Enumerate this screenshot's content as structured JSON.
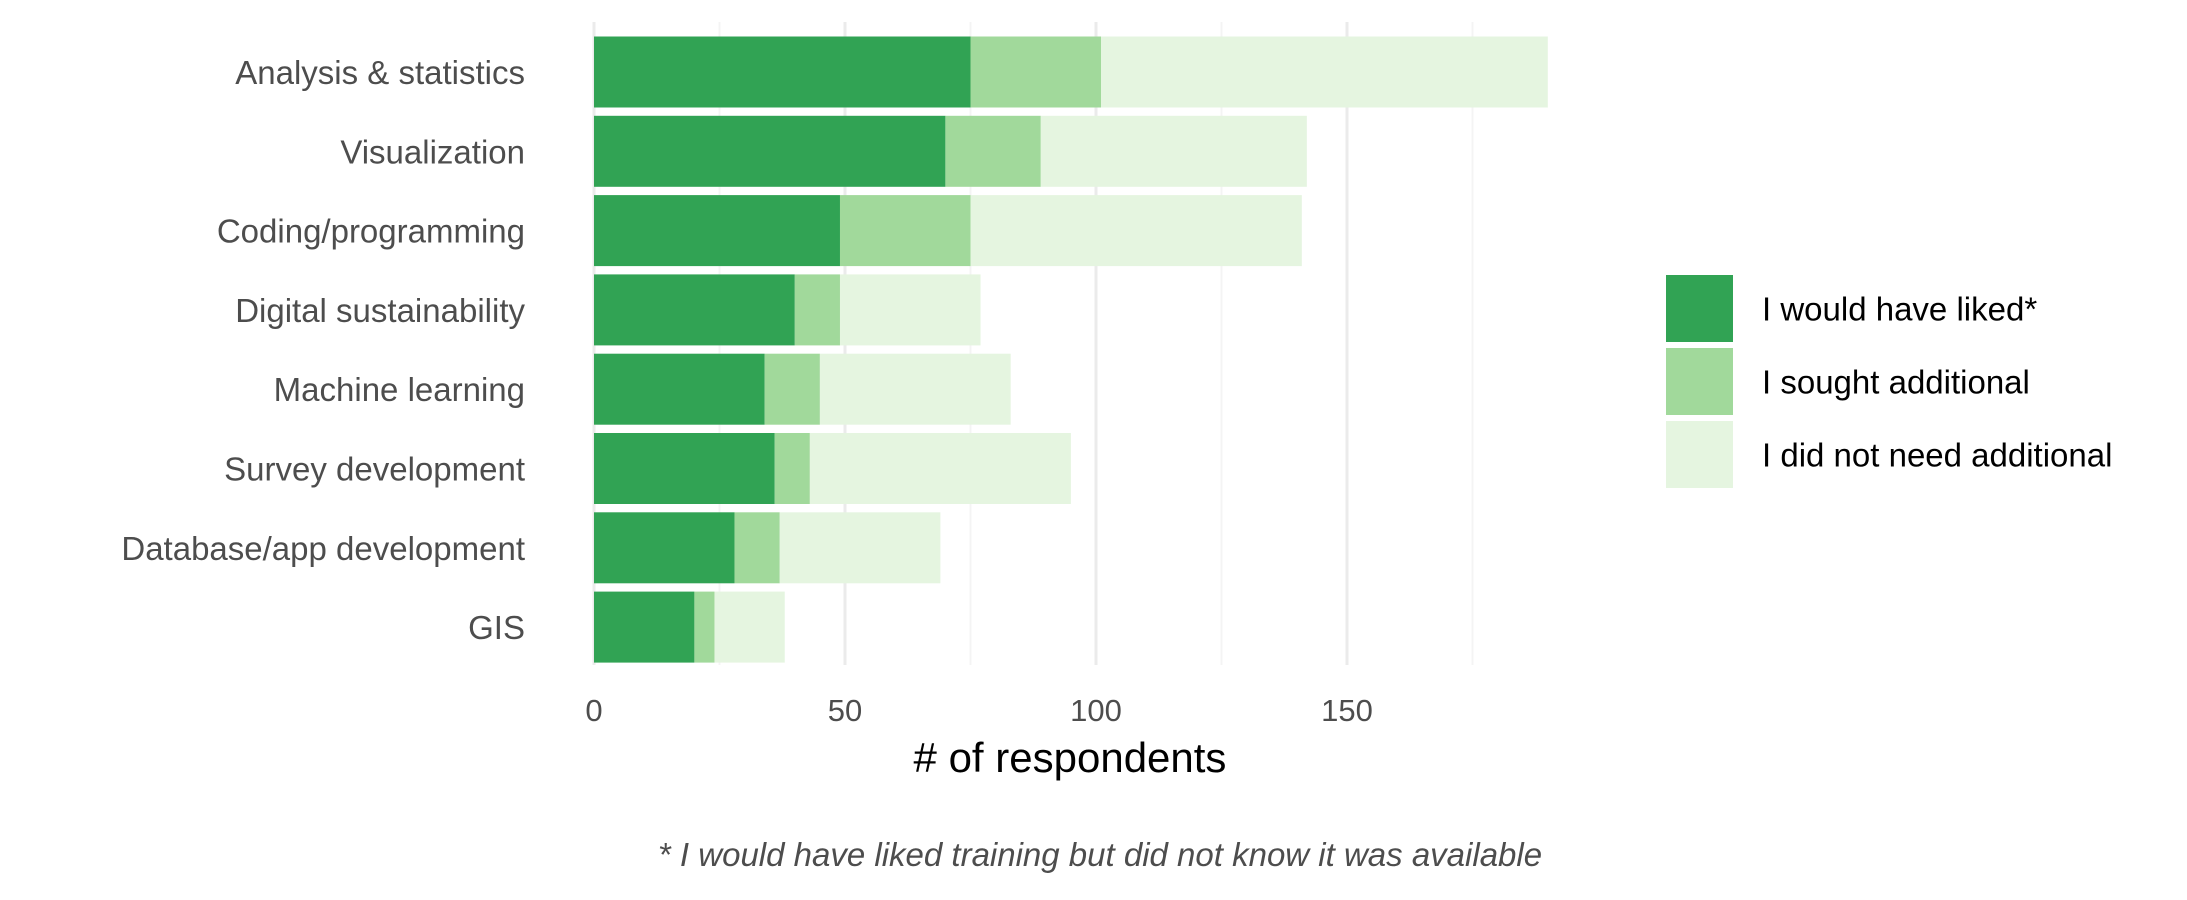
{
  "chart_data": {
    "type": "bar",
    "orientation": "horizontal",
    "stacked": true,
    "categories": [
      "Analysis & statistics",
      "Visualization",
      "Coding/programming",
      "Digital sustainability",
      "Machine learning",
      "Survey development",
      "Database/app development",
      "GIS"
    ],
    "series": [
      {
        "name": "I would have liked*",
        "color": "#31a354",
        "values": [
          75,
          70,
          49,
          40,
          34,
          36,
          28,
          20
        ]
      },
      {
        "name": "I sought additional",
        "color": "#a1d99b",
        "values": [
          26,
          19,
          26,
          9,
          11,
          7,
          9,
          4
        ]
      },
      {
        "name": "I did not need additional",
        "color": "#e5f5e0",
        "values": [
          89,
          53,
          66,
          28,
          38,
          52,
          32,
          14
        ]
      }
    ],
    "xlabel": "# of respondents",
    "xlim": [
      0,
      190
    ],
    "x_ticks": [
      0,
      50,
      100,
      150
    ],
    "grid": true,
    "legend_position": "right",
    "caption": "* I would have liked training but did not know it was available"
  }
}
